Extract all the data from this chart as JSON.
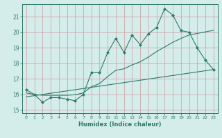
{
  "xlabel": "Humidex (Indice chaleur)",
  "bg_color": "#d4ecea",
  "grid_color": "#ccaaaa",
  "line_color": "#2d7a6a",
  "xlim": [
    -0.5,
    23.5
  ],
  "ylim": [
    14.8,
    21.8
  ],
  "yticks": [
    15,
    16,
    17,
    18,
    19,
    20,
    21
  ],
  "xticks": [
    0,
    1,
    2,
    3,
    4,
    5,
    6,
    7,
    8,
    9,
    10,
    11,
    12,
    13,
    14,
    15,
    16,
    17,
    18,
    19,
    20,
    21,
    22,
    23
  ],
  "main_x": [
    0,
    1,
    2,
    3,
    4,
    5,
    6,
    7,
    8,
    9,
    10,
    11,
    12,
    13,
    14,
    15,
    16,
    17,
    18,
    19,
    20,
    21,
    22,
    23
  ],
  "main_y": [
    16.3,
    16.0,
    15.5,
    15.8,
    15.8,
    15.7,
    15.6,
    16.0,
    17.4,
    17.4,
    18.7,
    19.6,
    18.7,
    19.8,
    19.2,
    19.9,
    20.3,
    21.5,
    21.1,
    20.1,
    20.0,
    19.0,
    18.2,
    17.6
  ],
  "trend1_x": [
    0,
    1,
    2,
    3,
    4,
    5,
    6,
    7,
    8,
    9,
    10,
    11,
    12,
    13,
    14,
    15,
    16,
    17,
    18,
    19,
    20,
    21,
    22,
    23
  ],
  "trend1_y": [
    16.1,
    16.0,
    15.95,
    15.95,
    15.95,
    15.95,
    15.98,
    16.1,
    16.5,
    16.7,
    17.15,
    17.55,
    17.65,
    17.9,
    18.1,
    18.4,
    18.75,
    19.05,
    19.35,
    19.6,
    19.82,
    19.92,
    20.02,
    20.12
  ],
  "trend2_x": [
    0,
    23
  ],
  "trend2_y": [
    15.85,
    17.6
  ]
}
